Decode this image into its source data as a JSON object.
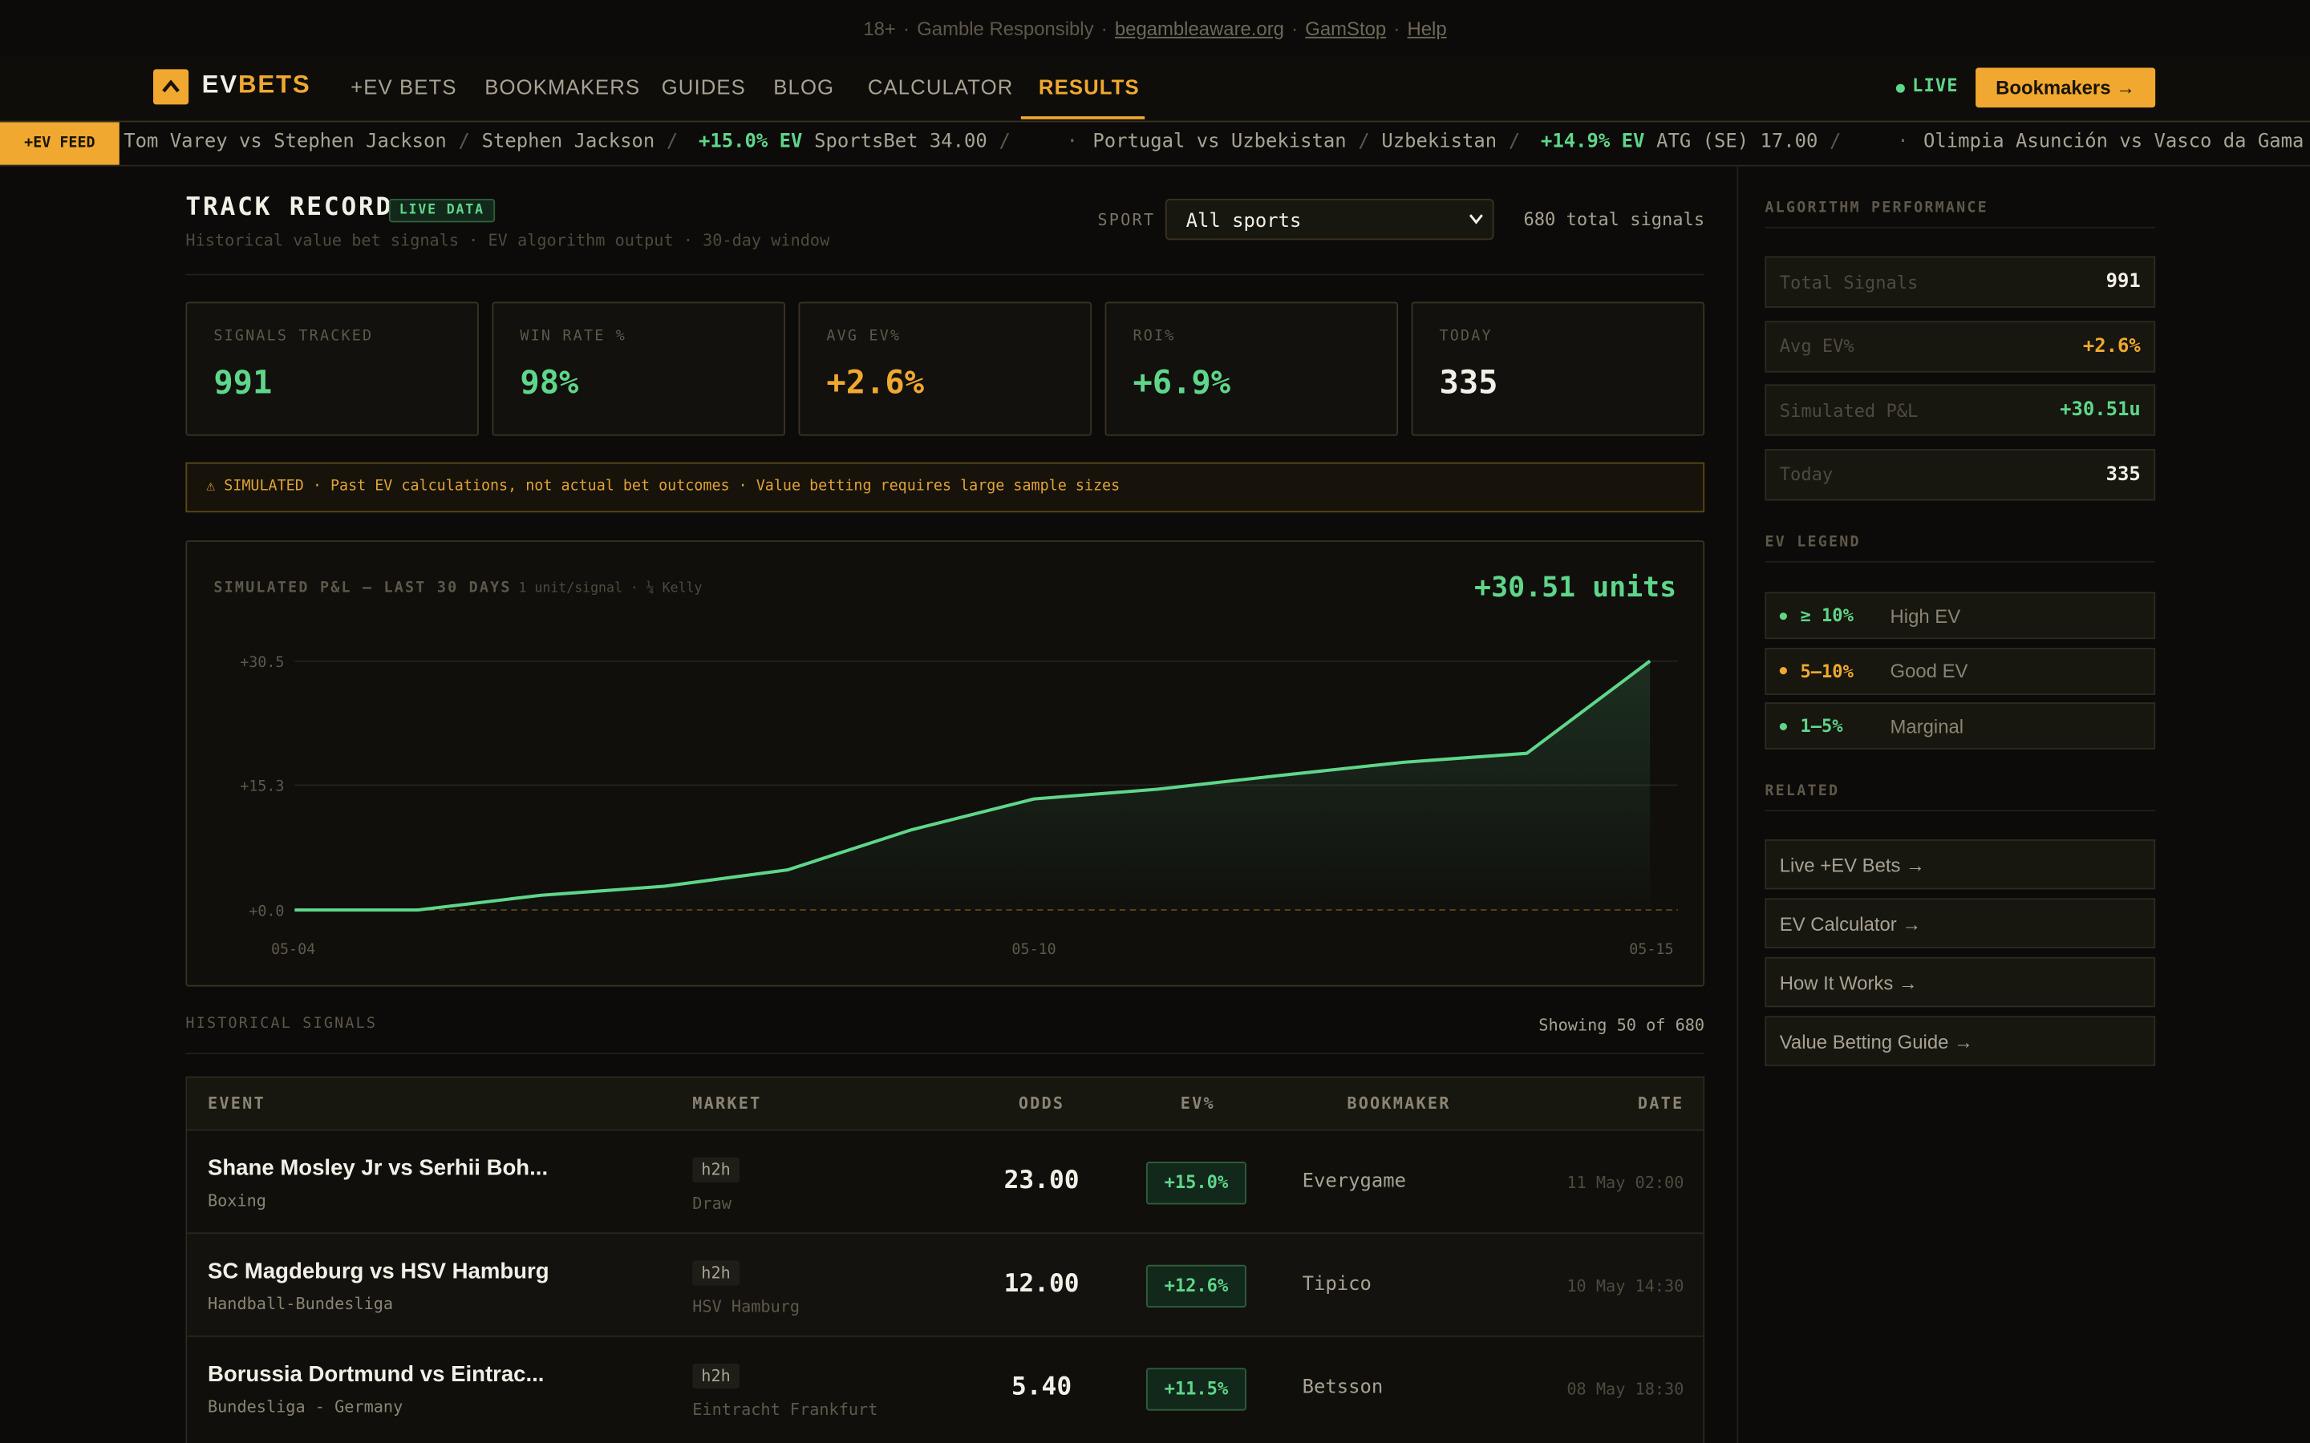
{
  "topbar": {
    "notices": [
      "18+",
      "Gamble Responsibly"
    ],
    "separator": "·",
    "links": [
      "begambleaware.org",
      "GamStop",
      "Help"
    ]
  },
  "nav": {
    "logo_a": "EV",
    "logo_b": "BETS",
    "links": [
      "+EV BETS",
      "BOOKMAKERS",
      "GUIDES",
      "BLOG",
      "CALCULATOR",
      "RESULTS"
    ],
    "active": 5,
    "live": "LIVE",
    "button": "Bookmakers →"
  },
  "ticker": {
    "label": "+EV FEED",
    "slash": "/",
    "dot": "·",
    "items": [
      {
        "event": "Tom Varey vs Stephen Jackson",
        "pick": "Stephen Jackson",
        "ev": "+15.0% EV",
        "book": "SportsBet 34.00"
      },
      {
        "event": "Portugal vs Uzbekistan",
        "pick": "Uzbekistan",
        "ev": "+14.9% EV",
        "book": "ATG (SE) 17.00"
      },
      {
        "event": "Olimpia Asunción vs Vasco da Gama",
        "pick": "Olimpia Asunción"
      }
    ]
  },
  "header": {
    "title": "TRACK RECORD",
    "badge": "LIVE DATA",
    "subtitle": "Historical value bet signals · EV algorithm output · 30-day window",
    "sport_label": "SPORT",
    "sport_select": "All sports",
    "total": "680 total signals"
  },
  "stats": [
    {
      "label": "SIGNALS TRACKED",
      "value": "991",
      "color": "#5fd68a"
    },
    {
      "label": "WIN RATE %",
      "value": "98%",
      "color": "#5fd68a"
    },
    {
      "label": "AVG EV%",
      "value": "+2.6%",
      "color": "#f0a830"
    },
    {
      "label": "ROI%",
      "value": "+6.9%",
      "color": "#5fd68a"
    },
    {
      "label": "TODAY",
      "value": "335",
      "color": "#f2efe6"
    }
  ],
  "warning": "⚠ SIMULATED · Past EV calculations, not actual bet outcomes · Value betting requires large sample sizes",
  "pnl_chart": {
    "type": "line",
    "title": "SIMULATED P&L — LAST 30 DAYS",
    "note": "1 unit/signal · ¼ Kelly",
    "total": "+30.51 units",
    "categories": [
      "05-04",
      null,
      null,
      null,
      null,
      null,
      "05-10",
      null,
      null,
      null,
      null,
      "05-15"
    ],
    "values": [
      0,
      0,
      1.8,
      2.9,
      4.9,
      9.8,
      13.6,
      14.8,
      16.5,
      18.1,
      19.2,
      30.51
    ],
    "color": "#5fd68a",
    "ylim": [
      0,
      30.5
    ],
    "yticks": [
      {
        "value": 0,
        "label": "+0.0"
      },
      {
        "value": 15.3,
        "label": "+15.3"
      },
      {
        "value": 30.5,
        "label": "+30.5"
      }
    ],
    "grid": true
  },
  "signals": {
    "label": "HISTORICAL SIGNALS",
    "showing": "Showing 50 of 680",
    "columns": [
      "EVENT",
      "MARKET",
      "ODDS",
      "EV%",
      "BOOKMAKER",
      "DATE"
    ],
    "rows": [
      {
        "event": "Shane Mosley Jr vs Serhii Boh...",
        "league": "Boxing",
        "market": "h2h",
        "pick": "Draw",
        "odds": "23.00",
        "ev": "+15.0%",
        "bookmaker": "Everygame",
        "date": "11 May 02:00"
      },
      {
        "event": "SC Magdeburg vs HSV Hamburg",
        "league": "Handball-Bundesliga",
        "market": "h2h",
        "pick": "HSV Hamburg",
        "odds": "12.00",
        "ev": "+12.6%",
        "bookmaker": "Tipico",
        "date": "10 May 14:30"
      },
      {
        "event": "Borussia Dortmund vs Eintrac...",
        "league": "Bundesliga - Germany",
        "market": "h2h",
        "pick": "Eintracht Frankfurt",
        "odds": "5.40",
        "ev": "+11.5%",
        "bookmaker": "Betsson",
        "date": "08 May 18:30"
      }
    ]
  },
  "sidebar": {
    "performance_title": "ALGORITHM PERFORMANCE",
    "performance": [
      {
        "label": "Total Signals",
        "value": "991",
        "color": "#f2efe6"
      },
      {
        "label": "Avg EV%",
        "value": "+2.6%",
        "color": "#f0a830"
      },
      {
        "label": "Simulated P&L",
        "value": "+30.51u",
        "color": "#5fd68a"
      },
      {
        "label": "Today",
        "value": "335",
        "color": "#f2efe6"
      }
    ],
    "legend_title": "EV LEGEND",
    "legend": [
      {
        "range": "≥ 10%",
        "label": "High EV",
        "color": "#5fd68a"
      },
      {
        "range": "5–10%",
        "label": "Good EV",
        "color": "#f0a830"
      },
      {
        "range": "1–5%",
        "label": "Marginal",
        "color": "#5fd68a"
      }
    ],
    "related_title": "RELATED",
    "related": [
      "Live +EV Bets →",
      "EV Calculator →",
      "How It Works →",
      "Value Betting Guide →"
    ]
  }
}
